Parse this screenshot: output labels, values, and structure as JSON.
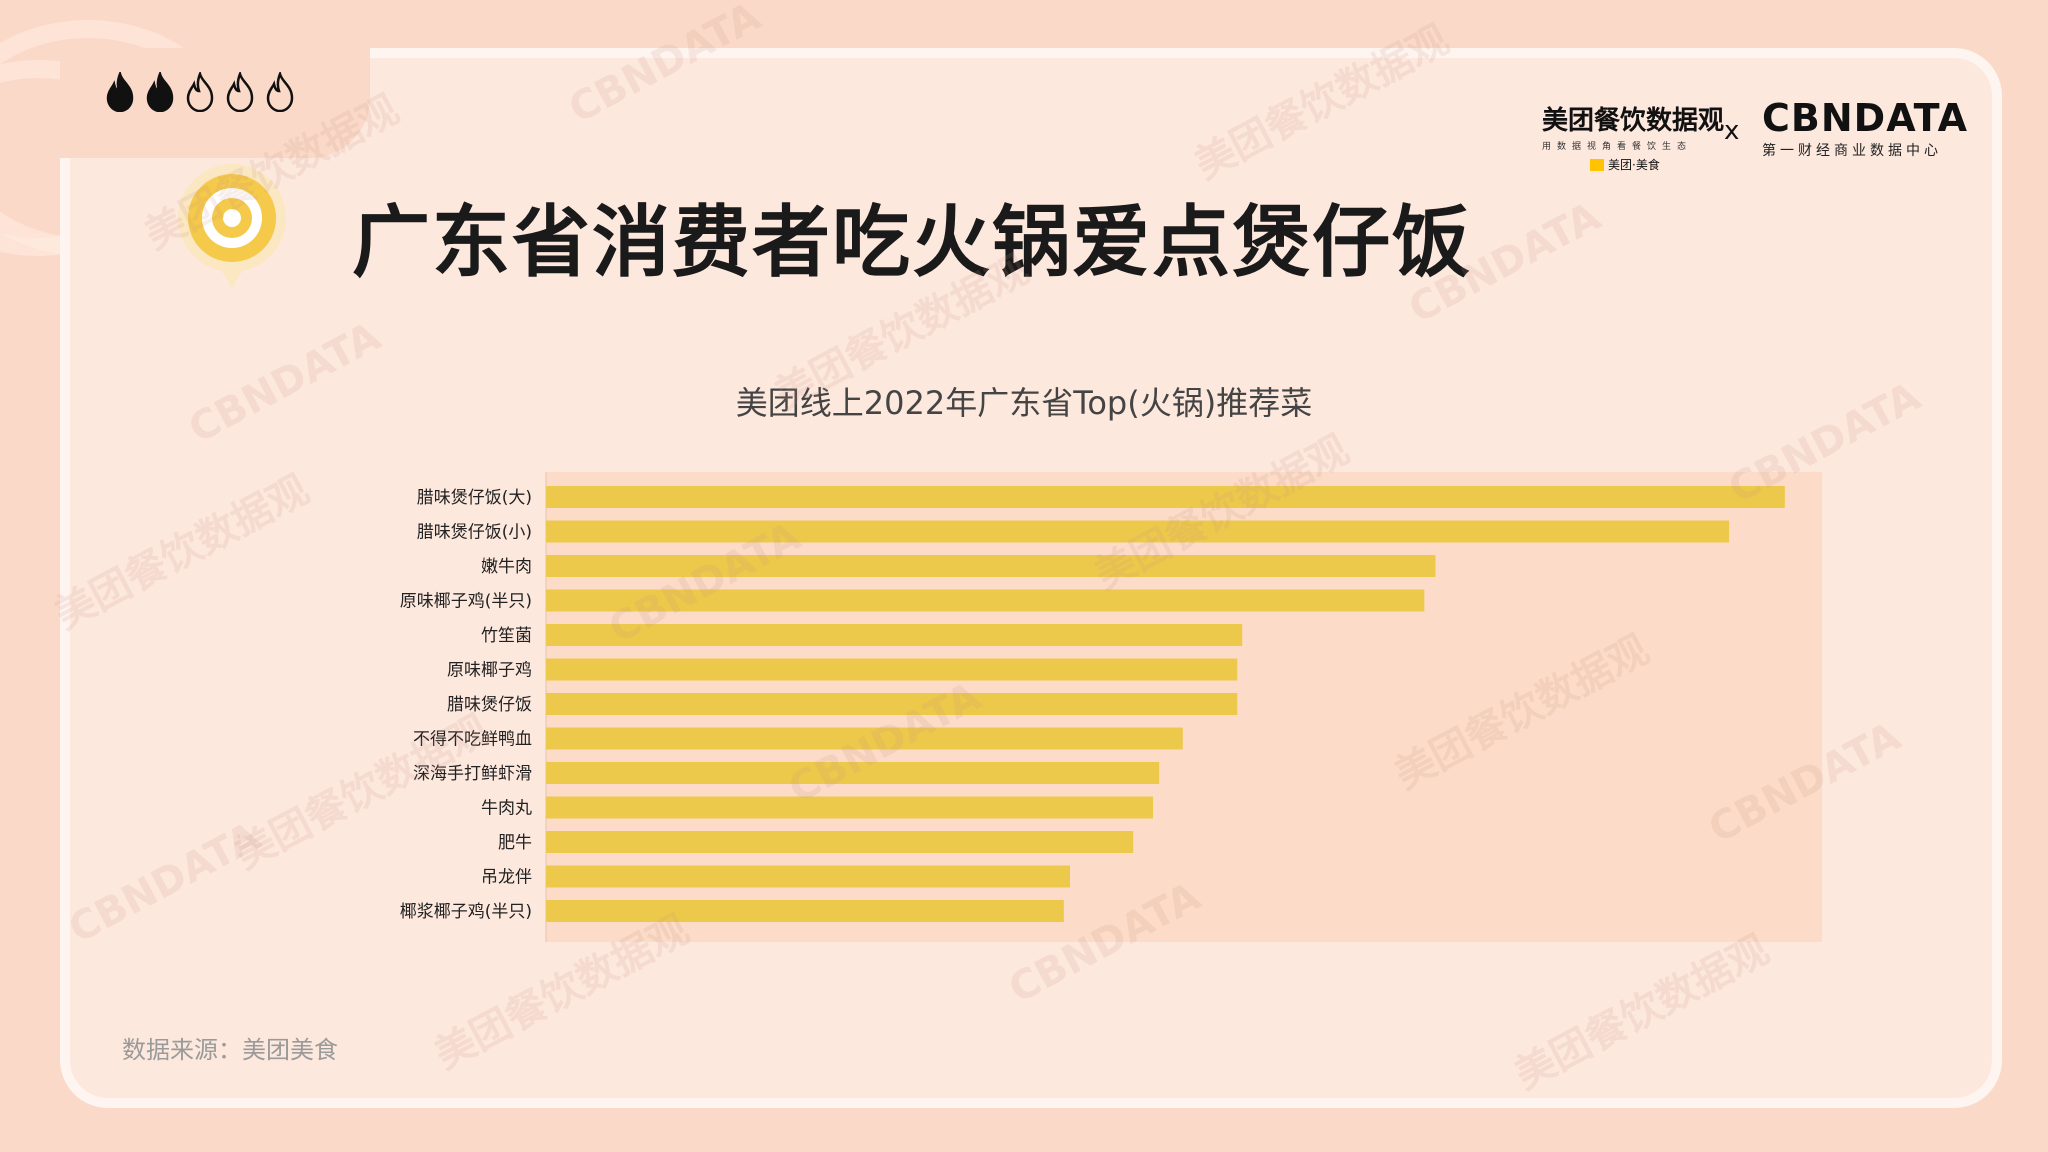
{
  "header": {
    "title": "广东省消费者吃火锅爱点煲仔饭",
    "rating": {
      "filled": 2,
      "total": 5
    }
  },
  "logos": {
    "meituan_main": "美团餐饮数据观",
    "meituan_sub": "用数据视角看餐饮生态",
    "meituan_badge": "美团·美食",
    "times": "x",
    "cbn_main": "CBNDATA",
    "cbn_sub": "第一财经商业数据中心"
  },
  "watermarks": [
    "美团餐饮数据观",
    "CBNDATA"
  ],
  "source": "数据来源：美团美食",
  "colors": {
    "bar": "#ecc94b",
    "background": "#fbd9c9",
    "panel": "#fde8de",
    "plot_bg": "#fcdcc8"
  },
  "chart_data": {
    "type": "bar",
    "orientation": "horizontal",
    "title": "美团线上2022年广东省Top(火锅)推荐菜",
    "categories": [
      "腊味煲仔饭(大)",
      "腊味煲仔饭(小)",
      "嫩牛肉",
      "原味椰子鸡(半只)",
      "竹笙菌",
      "原味椰子鸡",
      "腊味煲仔饭",
      "不得不吃鲜鸭血",
      "深海手打鲜虾滑",
      "牛肉丸",
      "肥牛",
      "吊龙伴",
      "椰浆椰子鸡(半只)"
    ],
    "values": [
      100,
      95.5,
      71.8,
      70.9,
      56.2,
      55.8,
      55.8,
      51.4,
      49.5,
      49.0,
      47.4,
      42.3,
      41.8
    ],
    "xlim": [
      0,
      103
    ],
    "axis_labels_shown": false,
    "grid": false
  }
}
